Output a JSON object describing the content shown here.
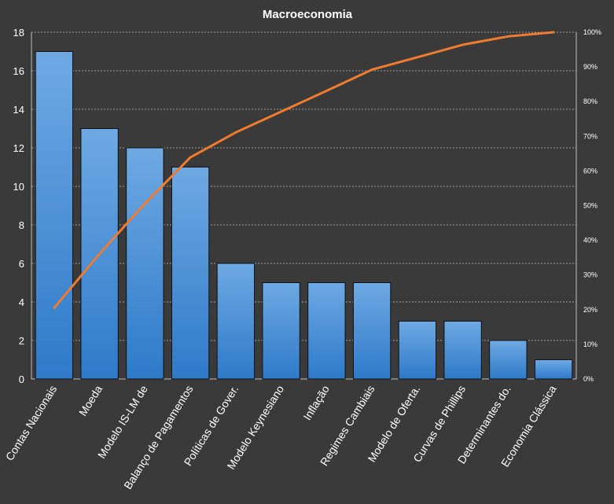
{
  "chart_data": {
    "type": "bar",
    "title": "Macroeconomia",
    "categories": [
      "Contas Nacionais",
      "Moeda",
      "Modelo IS-LM de",
      "Balanço de Pagamentos",
      "Políticas de Gover.",
      "Modelo Keynesiano",
      "Inflação",
      "Regimes Cambiais",
      "Modelo de Oferta.",
      "Curvas de Phillips",
      "Determinantes do.",
      "Economia Clássica"
    ],
    "series": [
      {
        "type": "bar",
        "axis": "left",
        "values": [
          17,
          13,
          12,
          11,
          6,
          5,
          5,
          5,
          3,
          3,
          2,
          1
        ]
      },
      {
        "type": "line",
        "axis": "right",
        "values": [
          20.5,
          36.1,
          50.6,
          63.9,
          71.1,
          77.1,
          83.1,
          89.2,
          92.8,
          96.4,
          98.8,
          100
        ]
      }
    ],
    "ylim": [
      0,
      18
    ],
    "yticks": [
      0,
      2,
      4,
      6,
      8,
      10,
      12,
      14,
      16,
      18
    ],
    "y2lim": [
      0,
      100
    ],
    "y2ticks": [
      "0%",
      "10%",
      "20%",
      "30%",
      "40%",
      "50%",
      "60%",
      "70%",
      "80%",
      "90%",
      "100%"
    ],
    "grid": true,
    "colors": {
      "background": "#3a3a3a",
      "bar_top": "#6ea9e3",
      "bar_bottom": "#2e7ac9",
      "bar_stroke": "#111111",
      "line": "#ee7c30",
      "grid": "#bfbfbf",
      "text": "#ffffff"
    }
  }
}
